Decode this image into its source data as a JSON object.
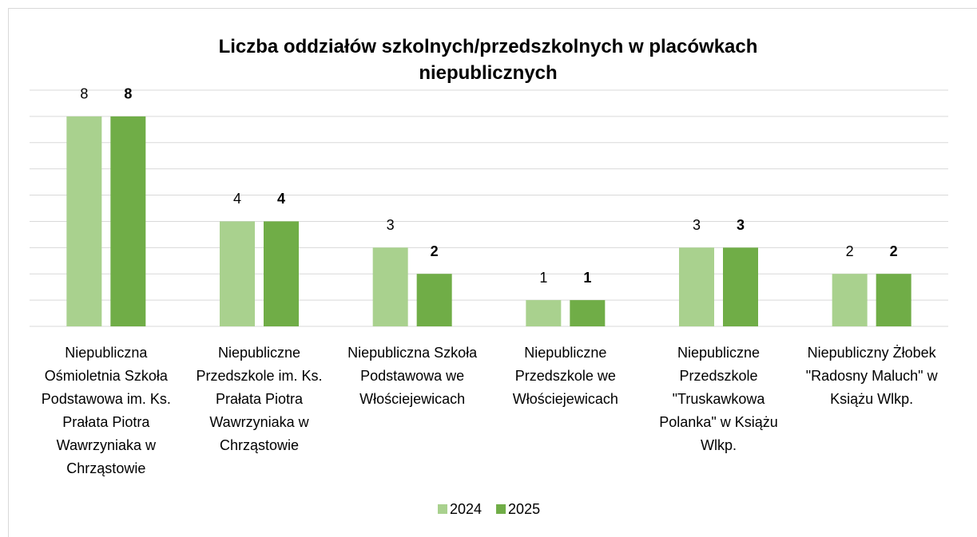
{
  "chart_data": {
    "type": "bar",
    "title": "Liczba oddziałów szkolnych/przedszkolnych w placówkach niepublicznych",
    "categories": [
      "Niepubliczna Ośmioletnia Szkoła Podstawowa im. Ks. Prałata Piotra Wawrzyniaka w Chrząstowie",
      "Niepubliczne Przedszkole im. Ks. Prałata Piotra Wawrzyniaka w Chrząstowie",
      "Niepubliczna Szkoła Podstawowa we Włościejewicach",
      "Niepubliczne Przedszkole we Włościejewicach",
      "Niepubliczne Przedszkole \"Truskawkowa Polanka\" w Książu Wlkp.",
      "Niepubliczny Żłobek \"Radosny Maluch\" w Książu Wlkp."
    ],
    "series": [
      {
        "name": "2024",
        "color": "#a9d18e",
        "values": [
          8,
          4,
          3,
          1,
          3,
          2
        ]
      },
      {
        "name": "2025",
        "color": "#70ad47",
        "values": [
          8,
          4,
          2,
          1,
          3,
          2
        ]
      }
    ],
    "ylim": [
      0,
      9
    ],
    "yticks": [
      0,
      1,
      2,
      3,
      4,
      5,
      6,
      7,
      8,
      9
    ],
    "grid": true,
    "legend": "bottom"
  }
}
